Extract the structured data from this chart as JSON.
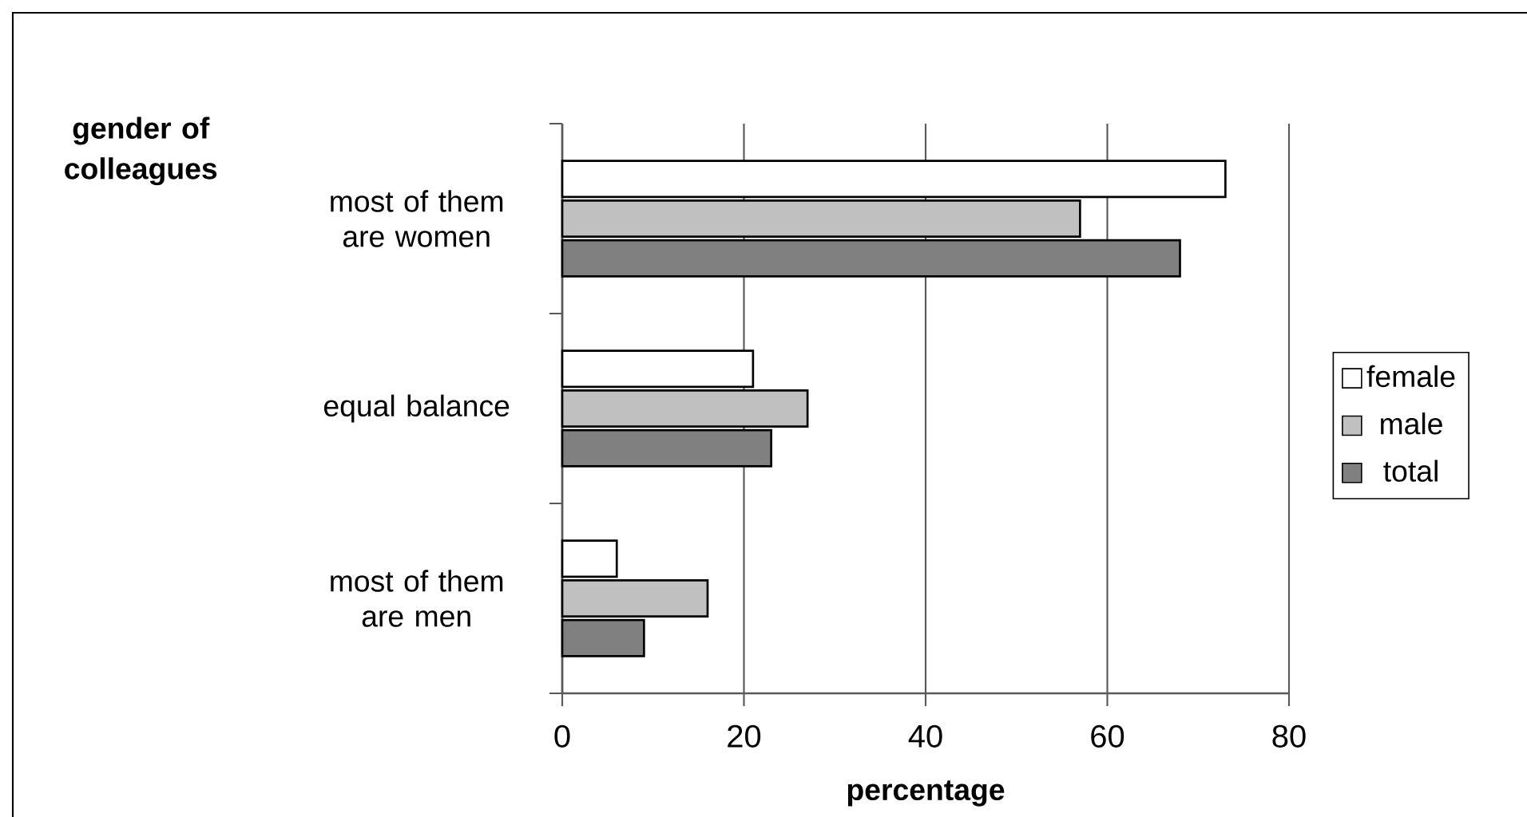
{
  "chart_data": {
    "type": "bar",
    "orientation": "horizontal",
    "xlabel": "percentage",
    "ylabel": "gender of colleagues",
    "categories": [
      "most of them are women",
      "equal balance",
      "most of them are men"
    ],
    "series": [
      {
        "name": "female",
        "color": "#ffffff",
        "values": [
          73,
          21,
          6
        ]
      },
      {
        "name": "male",
        "color": "#c0c0c0",
        "values": [
          57,
          27,
          16
        ]
      },
      {
        "name": "total",
        "color": "#808080",
        "values": [
          68,
          23,
          9
        ]
      }
    ],
    "xlim": [
      0,
      80
    ],
    "xticks": [
      0,
      20,
      40,
      60,
      80
    ],
    "grid": "x",
    "legend": "right"
  }
}
